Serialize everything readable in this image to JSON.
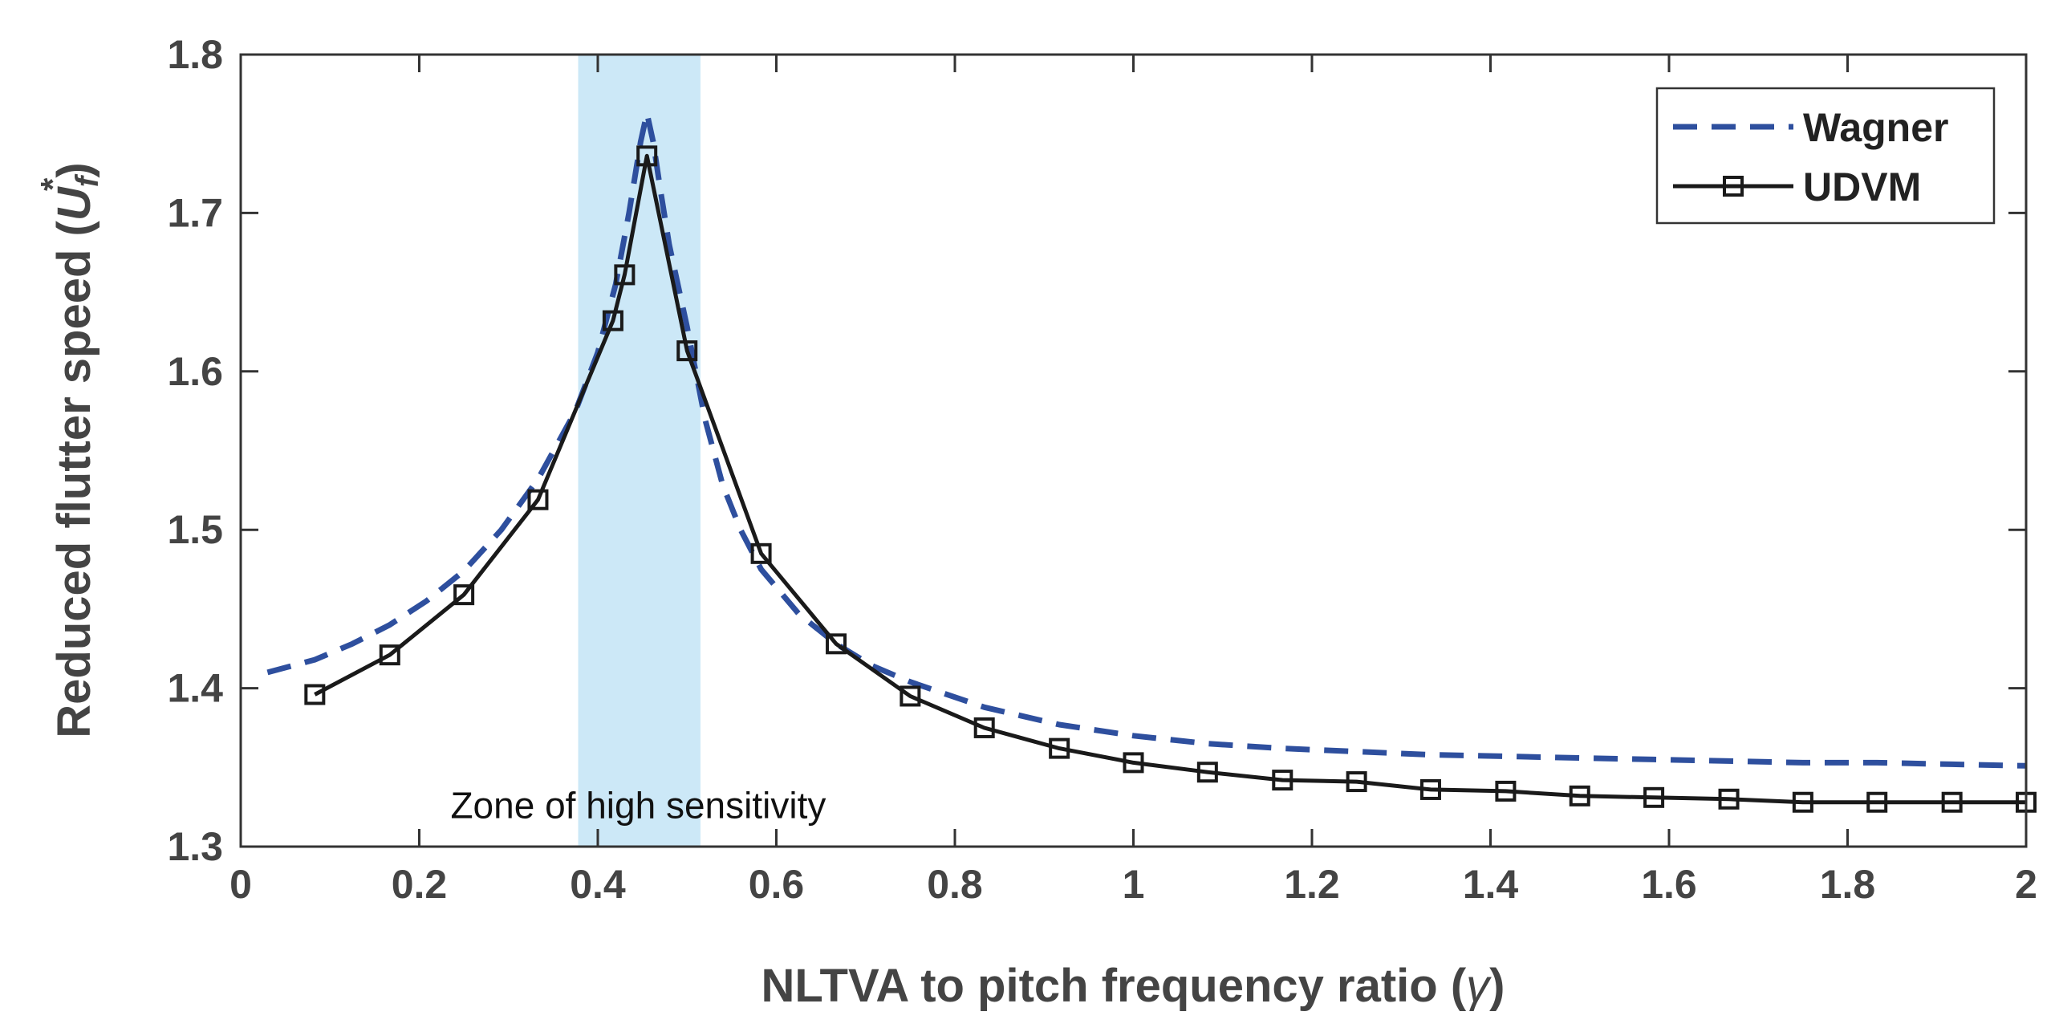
{
  "chart_data": {
    "type": "line",
    "title": "",
    "xlabel_main": "NLTVA to pitch frequency ratio (",
    "xlabel_symbol": "γ",
    "xlabel_close": ")",
    "ylabel_main": "Reduced flutter speed (",
    "ylabel_symbol": "U",
    "ylabel_sub": "f",
    "ylabel_sup": "*",
    "ylabel_close": ")",
    "xlim": [
      0,
      2
    ],
    "ylim": [
      1.3,
      1.8
    ],
    "xticks": [
      0,
      0.2,
      0.4,
      0.6,
      0.8,
      1,
      1.2,
      1.4,
      1.6,
      1.8,
      2
    ],
    "xtick_labels": [
      "0",
      "0.2",
      "0.4",
      "0.6",
      "0.8",
      "1",
      "1.2",
      "1.4",
      "1.6",
      "1.8",
      "2"
    ],
    "yticks": [
      1.3,
      1.4,
      1.5,
      1.6,
      1.7,
      1.8
    ],
    "ytick_labels": [
      "1.3",
      "1.4",
      "1.5",
      "1.6",
      "1.7",
      "1.8"
    ],
    "grid": false,
    "legend_position": "top-right",
    "highlight_band": {
      "x_range": [
        0.378,
        0.515
      ],
      "color": "#cce8f7",
      "label": "Zone of high sensitivity",
      "label_x": 0.235,
      "label_y": 1.326
    },
    "series": [
      {
        "name": "Wagner",
        "style": "dashed",
        "color": "#2e4f9e",
        "marker": "none",
        "x": [
          0.03,
          0.083,
          0.125,
          0.167,
          0.208,
          0.25,
          0.292,
          0.333,
          0.375,
          0.4,
          0.42,
          0.435,
          0.448,
          0.455,
          0.462,
          0.47,
          0.48,
          0.5,
          0.52,
          0.54,
          0.56,
          0.583,
          0.625,
          0.667,
          0.708,
          0.75,
          0.833,
          0.917,
          1.0,
          1.083,
          1.167,
          1.25,
          1.333,
          1.417,
          1.5,
          1.583,
          1.667,
          1.75,
          1.833,
          1.917,
          2.0
        ],
        "y": [
          1.41,
          1.418,
          1.428,
          1.44,
          1.455,
          1.474,
          1.5,
          1.532,
          1.575,
          1.612,
          1.655,
          1.7,
          1.745,
          1.763,
          1.745,
          1.715,
          1.68,
          1.628,
          1.57,
          1.528,
          1.5,
          1.475,
          1.447,
          1.428,
          1.414,
          1.404,
          1.388,
          1.377,
          1.37,
          1.365,
          1.362,
          1.36,
          1.358,
          1.357,
          1.356,
          1.355,
          1.354,
          1.353,
          1.353,
          1.352,
          1.351
        ]
      },
      {
        "name": "UDVM",
        "style": "solid",
        "color": "#1a1a1a",
        "marker": "square",
        "x": [
          0.083,
          0.167,
          0.25,
          0.333,
          0.417,
          0.43,
          0.455,
          0.5,
          0.583,
          0.667,
          0.75,
          0.833,
          0.917,
          1.0,
          1.083,
          1.167,
          1.25,
          1.333,
          1.417,
          1.5,
          1.583,
          1.667,
          1.75,
          1.833,
          1.917,
          2.0
        ],
        "y": [
          1.396,
          1.421,
          1.459,
          1.519,
          1.632,
          1.661,
          1.736,
          1.613,
          1.485,
          1.428,
          1.395,
          1.375,
          1.362,
          1.353,
          1.347,
          1.342,
          1.341,
          1.336,
          1.335,
          1.332,
          1.331,
          1.33,
          1.328,
          1.328,
          1.328,
          1.328
        ]
      }
    ]
  }
}
